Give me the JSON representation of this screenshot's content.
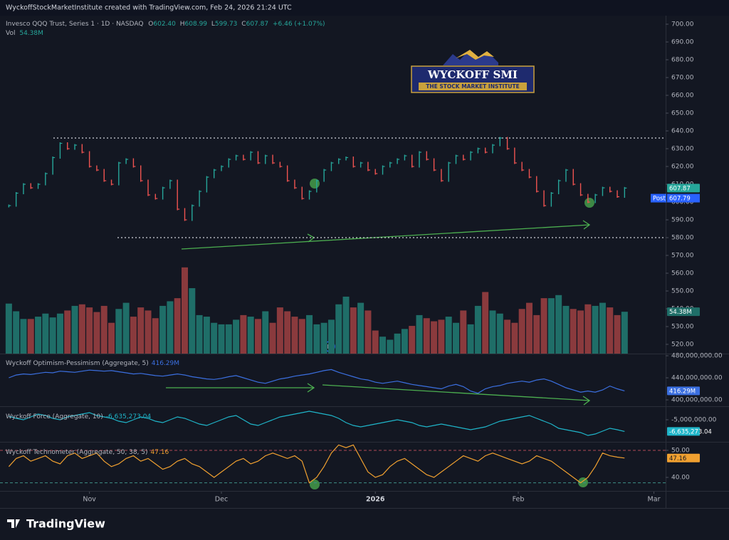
{
  "header": {
    "credit": "WyckoffStockMarketInstitute created with TradingView.com, Feb 24, 2026 21:24 UTC",
    "symbol": "Invesco QQQ Trust, Series 1 · 1D · NASDAQ",
    "ohlc": [
      {
        "key": "O",
        "value": "602.40"
      },
      {
        "key": "H",
        "value": "608.99"
      },
      {
        "key": "L",
        "value": "599.73"
      },
      {
        "key": "C",
        "value": "607.87"
      }
    ],
    "change": "+6.46 (+1.07%)"
  },
  "logo": {
    "title": "WYCKOFF SMI",
    "subtitle": "THE STOCK MARKET INSTITUTE"
  },
  "footer": "TradingView",
  "markers": {
    "dividend": "D"
  },
  "chart_data": [
    {
      "type": "range",
      "up_color": "#26a69a",
      "down_color": "#ef5350",
      "values": [
        598,
        605,
        610,
        608,
        610,
        616,
        625,
        633,
        630,
        632,
        628,
        620,
        618,
        612,
        610,
        622,
        624,
        620,
        612,
        604,
        602,
        608,
        612,
        596,
        590,
        598,
        606,
        614,
        618,
        620,
        624,
        626,
        624,
        628,
        622,
        626,
        622,
        620,
        612,
        608,
        602,
        606,
        612,
        618,
        622,
        624,
        625,
        620,
        622,
        618,
        616,
        620,
        622,
        624,
        626,
        620,
        628,
        624,
        618,
        612,
        622,
        626,
        624,
        628,
        630,
        628,
        632,
        636,
        630,
        622,
        618,
        614,
        606,
        598,
        605,
        612,
        618,
        610,
        604,
        600,
        604,
        608,
        606,
        603,
        607.87
      ],
      "post": {
        "label": "Post",
        "value": 607.79
      },
      "levels": [
        636,
        580
      ],
      "ylim": [
        515.6,
        703.6
      ],
      "yticks": [
        {
          "value": 520,
          "label": "520.00"
        },
        {
          "value": 530,
          "label": "530.00"
        },
        {
          "value": 540,
          "label": "540.00"
        },
        {
          "value": 550,
          "label": "550.00"
        },
        {
          "value": 560,
          "label": "560.00"
        },
        {
          "value": 570,
          "label": "570.00"
        },
        {
          "value": 580,
          "label": "580.00"
        },
        {
          "value": 590,
          "label": "590.00"
        },
        {
          "value": 600,
          "label": "600.00"
        },
        {
          "value": 610,
          "label": "610.00"
        },
        {
          "value": 620,
          "label": "620.00"
        },
        {
          "value": 630,
          "label": "630.00"
        },
        {
          "value": 640,
          "label": "640.00"
        },
        {
          "value": 650,
          "label": "650.00"
        },
        {
          "value": 660,
          "label": "660.00"
        },
        {
          "value": 670,
          "label": "670.00"
        },
        {
          "value": 680,
          "label": "680.00"
        },
        {
          "value": 690,
          "label": "690.00"
        },
        {
          "value": 700,
          "label": "700.00"
        }
      ],
      "xlim": [
        -1.2,
        89.6
      ],
      "xticks": [
        {
          "value": 11,
          "label": "Nov"
        },
        {
          "value": 29,
          "label": "Dec"
        },
        {
          "value": 50,
          "label": "2026"
        },
        {
          "value": 69.5,
          "label": "Feb"
        },
        {
          "value": 88,
          "label": "Mar"
        }
      ]
    },
    {
      "type": "bar",
      "title": "Vol",
      "last_label": "54.38M",
      "color": "#26a69a",
      "up_color": "#1f6e68",
      "down_color": "#8a3a3d",
      "values": [
        65,
        55,
        45,
        45,
        48,
        52,
        47,
        52,
        56,
        62,
        64,
        60,
        54,
        62,
        40,
        58,
        66,
        48,
        60,
        56,
        46,
        62,
        68,
        72,
        112,
        85,
        50,
        48,
        40,
        38,
        38,
        44,
        50,
        48,
        45,
        55,
        40,
        60,
        55,
        48,
        45,
        50,
        38,
        40,
        44,
        64,
        74,
        60,
        66,
        56,
        30,
        22,
        18,
        26,
        32,
        36,
        50,
        46,
        42,
        44,
        48,
        40,
        56,
        38,
        62,
        80,
        56,
        52,
        44,
        40,
        58,
        66,
        50,
        72,
        72,
        76,
        62,
        58,
        56,
        64,
        62,
        66,
        60,
        50,
        54.38
      ],
      "ylim": [
        0,
        110
      ]
    },
    {
      "type": "line",
      "title": "Wyckoff Optimism-Pessimism (Aggregate, 5)",
      "last_label": "416.29M",
      "color": "#3b6fe0",
      "values": [
        440000000.0,
        445000000.0,
        447000000.0,
        446000000.0,
        448000000.0,
        450000000.0,
        449000000.0,
        452000000.0,
        451000000.0,
        450000000.0,
        452000000.0,
        454000000.0,
        453000000.0,
        452000000.0,
        453000000.0,
        451000000.0,
        449000000.0,
        447000000.0,
        448000000.0,
        446000000.0,
        444000000.0,
        443000000.0,
        445000000.0,
        447000000.0,
        445000000.0,
        442000000.0,
        440000000.0,
        438000000.0,
        437000000.0,
        439000000.0,
        442000000.0,
        444000000.0,
        440000000.0,
        436000000.0,
        432000000.0,
        430000000.0,
        434000000.0,
        438000000.0,
        440000000.0,
        443000000.0,
        445000000.0,
        447000000.0,
        450000000.0,
        453000000.0,
        455000000.0,
        450000000.0,
        446000000.0,
        442000000.0,
        438000000.0,
        436000000.0,
        432000000.0,
        430000000.0,
        432000000.0,
        434000000.0,
        431000000.0,
        428000000.0,
        426000000.0,
        424000000.0,
        422000000.0,
        420000000.0,
        425000000.0,
        428000000.0,
        424000000.0,
        416000000.0,
        412000000.0,
        420000000.0,
        424000000.0,
        426000000.0,
        430000000.0,
        432000000.0,
        434000000.0,
        432000000.0,
        436000000.0,
        438000000.0,
        434000000.0,
        428000000.0,
        422000000.0,
        418000000.0,
        414000000.0,
        416000000.0,
        414000000.0,
        418000000.0,
        425000000.0,
        420000000.0,
        416290000
      ],
      "ylim": [
        389700000.0,
        483900000.0
      ],
      "yticks": [
        {
          "value": 400000000.0,
          "label": "400,000,000.00"
        },
        {
          "value": 440000000.0,
          "label": "440,000,000.00"
        },
        {
          "value": 480000000.0,
          "label": "480,000,000.00"
        }
      ]
    },
    {
      "type": "line",
      "title": "Wyckoff Force (Aggregate, 10)",
      "last_label": "-6,635,273.04",
      "color": "#1fb5c9",
      "values": [
        -4500000.0,
        -4800000.0,
        -5000000.0,
        -4600000.0,
        -4200000.0,
        -4400000.0,
        -4800000.0,
        -5000000.0,
        -4600000.0,
        -4400000.0,
        -4200000.0,
        -4000000.0,
        -4400000.0,
        -4600000.0,
        -4800000.0,
        -5200000.0,
        -5400000.0,
        -5000000.0,
        -4600000.0,
        -4800000.0,
        -5200000.0,
        -5400000.0,
        -5000000.0,
        -4600000.0,
        -4800000.0,
        -5200000.0,
        -5600000.0,
        -5800000.0,
        -5400000.0,
        -5000000.0,
        -4600000.0,
        -4400000.0,
        -5000000.0,
        -5600000.0,
        -5800000.0,
        -5400000.0,
        -5000000.0,
        -4600000.0,
        -4400000.0,
        -4200000.0,
        -4000000.0,
        -3800000.0,
        -4000000.0,
        -4200000.0,
        -4400000.0,
        -4800000.0,
        -5400000.0,
        -5800000.0,
        -6000000.0,
        -5800000.0,
        -5600000.0,
        -5400000.0,
        -5200000.0,
        -5000000.0,
        -5200000.0,
        -5400000.0,
        -5800000.0,
        -6000000.0,
        -5800000.0,
        -5600000.0,
        -5800000.0,
        -6000000.0,
        -6200000.0,
        -6400000.0,
        -6200000.0,
        -6000000.0,
        -5600000.0,
        -5200000.0,
        -5000000.0,
        -4800000.0,
        -4600000.0,
        -4400000.0,
        -4800000.0,
        -5200000.0,
        -5600000.0,
        -6200000.0,
        -6400000.0,
        -6600000.0,
        -6800000.0,
        -7200000.0,
        -7000000.0,
        -6600000.0,
        -6200000.0,
        -6400000.0,
        -6635273.04
      ],
      "ylim": [
        -8000000.0,
        -3200000.0
      ],
      "yticks": [
        {
          "value": -5000000.0,
          "label": "-5,000,000.00"
        }
      ]
    },
    {
      "type": "line",
      "title": "Wyckoff Technometer (Aggregate, 50, 38, 5)",
      "last_label": "47.16",
      "color": "#f0a030",
      "values": [
        44,
        47,
        48,
        46,
        47,
        48,
        46,
        45,
        48,
        49,
        47,
        48,
        49,
        46,
        44,
        45,
        47,
        48,
        46,
        47,
        45,
        43,
        44,
        46,
        47,
        45,
        44,
        42,
        40,
        42,
        44,
        46,
        47,
        45,
        46,
        48,
        49,
        48,
        47,
        48,
        46,
        38,
        40,
        44,
        49,
        52,
        51,
        52,
        47,
        42,
        40,
        41,
        44,
        46,
        47,
        45,
        43,
        41,
        40,
        42,
        44,
        46,
        48,
        47,
        46,
        48,
        49,
        48,
        47,
        46,
        45,
        46,
        48,
        47,
        46,
        44,
        42,
        40,
        38,
        40,
        44,
        49,
        48,
        47.5,
        47.16
      ],
      "levels": [
        50,
        38
      ],
      "ylim": [
        35,
        52.9
      ],
      "yticks": [
        {
          "value": 40,
          "label": "40.00"
        },
        {
          "value": 50,
          "label": "50.00"
        }
      ]
    }
  ]
}
